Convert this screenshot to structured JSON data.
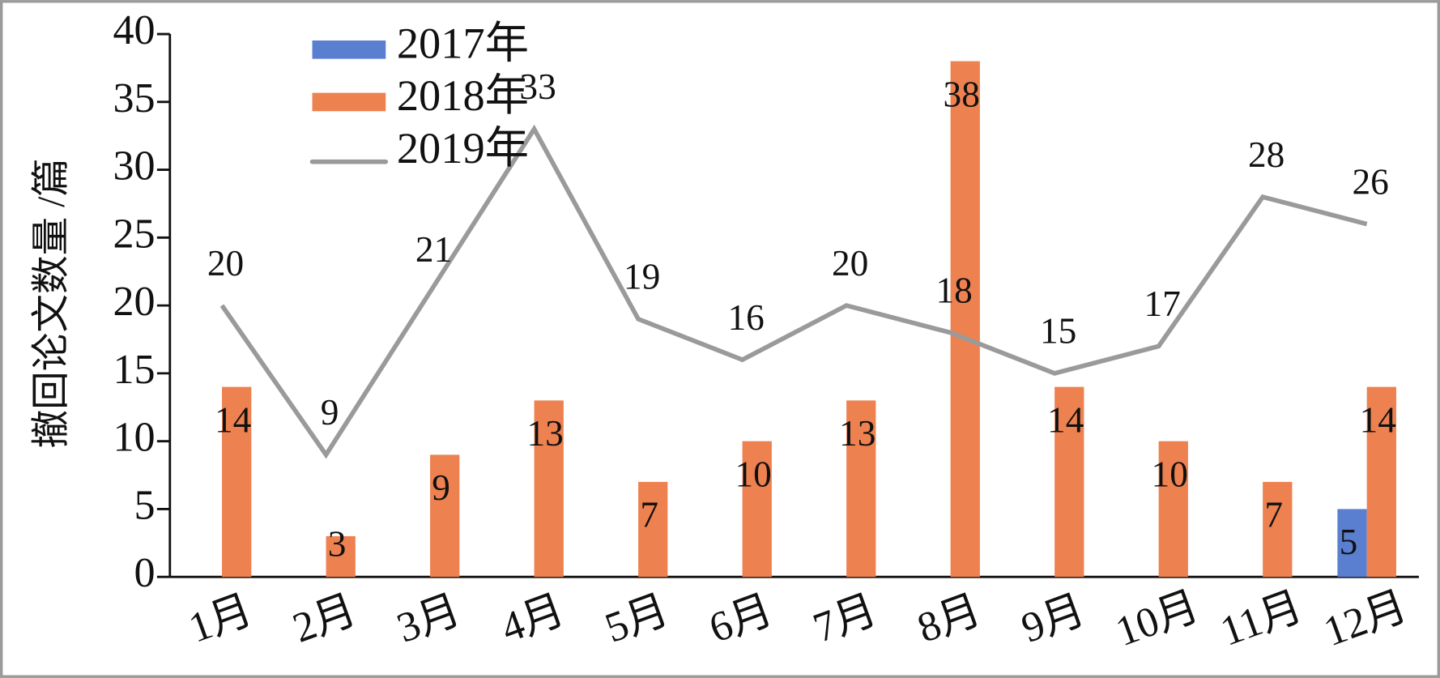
{
  "chart_data": {
    "type": "bar",
    "y_label": "撤回论文数量 /篇",
    "categories": [
      "1月",
      "2月",
      "3月",
      "4月",
      "5月",
      "6月",
      "7月",
      "8月",
      "9月",
      "10月",
      "11月",
      "12月"
    ],
    "series": [
      {
        "name": "2017年",
        "type": "bar",
        "color": "#5b7fd0",
        "values": [
          null,
          null,
          null,
          null,
          null,
          null,
          null,
          null,
          null,
          null,
          null,
          5
        ]
      },
      {
        "name": "2018年",
        "type": "bar",
        "color": "#ee8150",
        "values": [
          14,
          3,
          9,
          13,
          7,
          10,
          13,
          38,
          14,
          10,
          7,
          14
        ]
      },
      {
        "name": "2019年",
        "type": "line",
        "color": "#9a9a9a",
        "values": [
          20,
          9,
          21,
          33,
          19,
          16,
          20,
          18,
          15,
          17,
          28,
          26
        ]
      }
    ],
    "ylim": [
      0,
      40
    ],
    "yticks": [
      0,
      5,
      10,
      15,
      20,
      25,
      30,
      35,
      40
    ]
  }
}
